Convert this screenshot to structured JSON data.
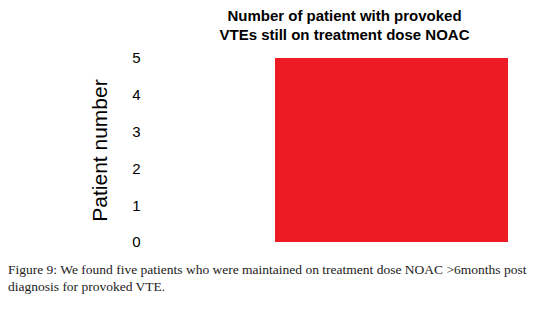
{
  "chart_data": {
    "type": "bar",
    "title": "Number of patient with provoked\nVTEs still on treatment dose NOAC",
    "y_label": "Patient number",
    "categories": [
      null
    ],
    "values": [
      5
    ],
    "color": "#ed1c24",
    "ylim": [
      0,
      5
    ],
    "yticks": [
      0,
      1,
      2,
      3,
      4,
      5
    ],
    "grid": false,
    "tick_labels": "y",
    "caption": "Figure 9: We found five patients who were maintained on treatment dose NOAC >6months post diagnosis for provoked VTE."
  }
}
